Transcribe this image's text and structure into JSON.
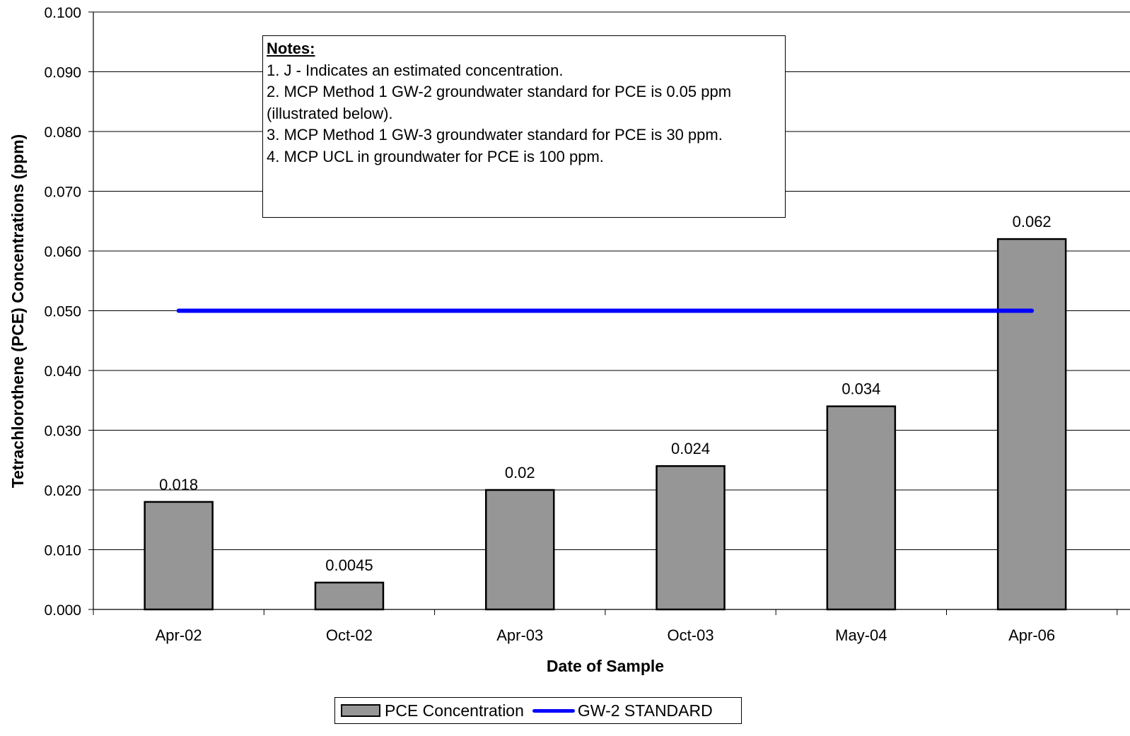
{
  "chart_data": {
    "type": "bar",
    "title": "",
    "xlabel": "Date of Sample",
    "ylabel": "Tetrachlorothene (PCE) Concentrations (ppm)",
    "categories": [
      "Apr-02",
      "Oct-02",
      "Apr-03",
      "Oct-03",
      "May-04",
      "Apr-06"
    ],
    "series": [
      {
        "name": "PCE Concentration",
        "type": "bar",
        "color": "#969696",
        "values": [
          0.018,
          0.0045,
          0.02,
          0.024,
          0.034,
          0.062
        ],
        "data_labels": [
          "0.018",
          "0.0045",
          "0.02",
          "0.024",
          "0.034",
          "0.062"
        ]
      },
      {
        "name": "GW-2 STANDARD",
        "type": "line",
        "color": "#0000ff",
        "values": [
          0.05,
          0.05,
          0.05,
          0.05,
          0.05,
          0.05
        ]
      }
    ],
    "ylim": [
      0,
      0.1
    ],
    "yticks": [
      0,
      0.01,
      0.02,
      0.03,
      0.04,
      0.05,
      0.06,
      0.07,
      0.08,
      0.09,
      0.1
    ],
    "ytick_labels": [
      "0.000",
      "0.010",
      "0.020",
      "0.030",
      "0.040",
      "0.050",
      "0.060",
      "0.070",
      "0.080",
      "0.090",
      "0.100"
    ],
    "grid": true,
    "legend": "bottom"
  },
  "notes": {
    "title": "Notes:",
    "lines": [
      "1.  J - Indicates an estimated concentration.",
      "2.  MCP Method 1 GW-2 groundwater standard for PCE is 0.05 ppm",
      "(illustrated below).",
      "3.  MCP Method 1 GW-3 groundwater standard for PCE is 30 ppm.",
      "4.  MCP UCL in groundwater for PCE is 100 ppm."
    ]
  },
  "legend": {
    "items": [
      "PCE Concentration",
      "GW-2 STANDARD"
    ]
  }
}
